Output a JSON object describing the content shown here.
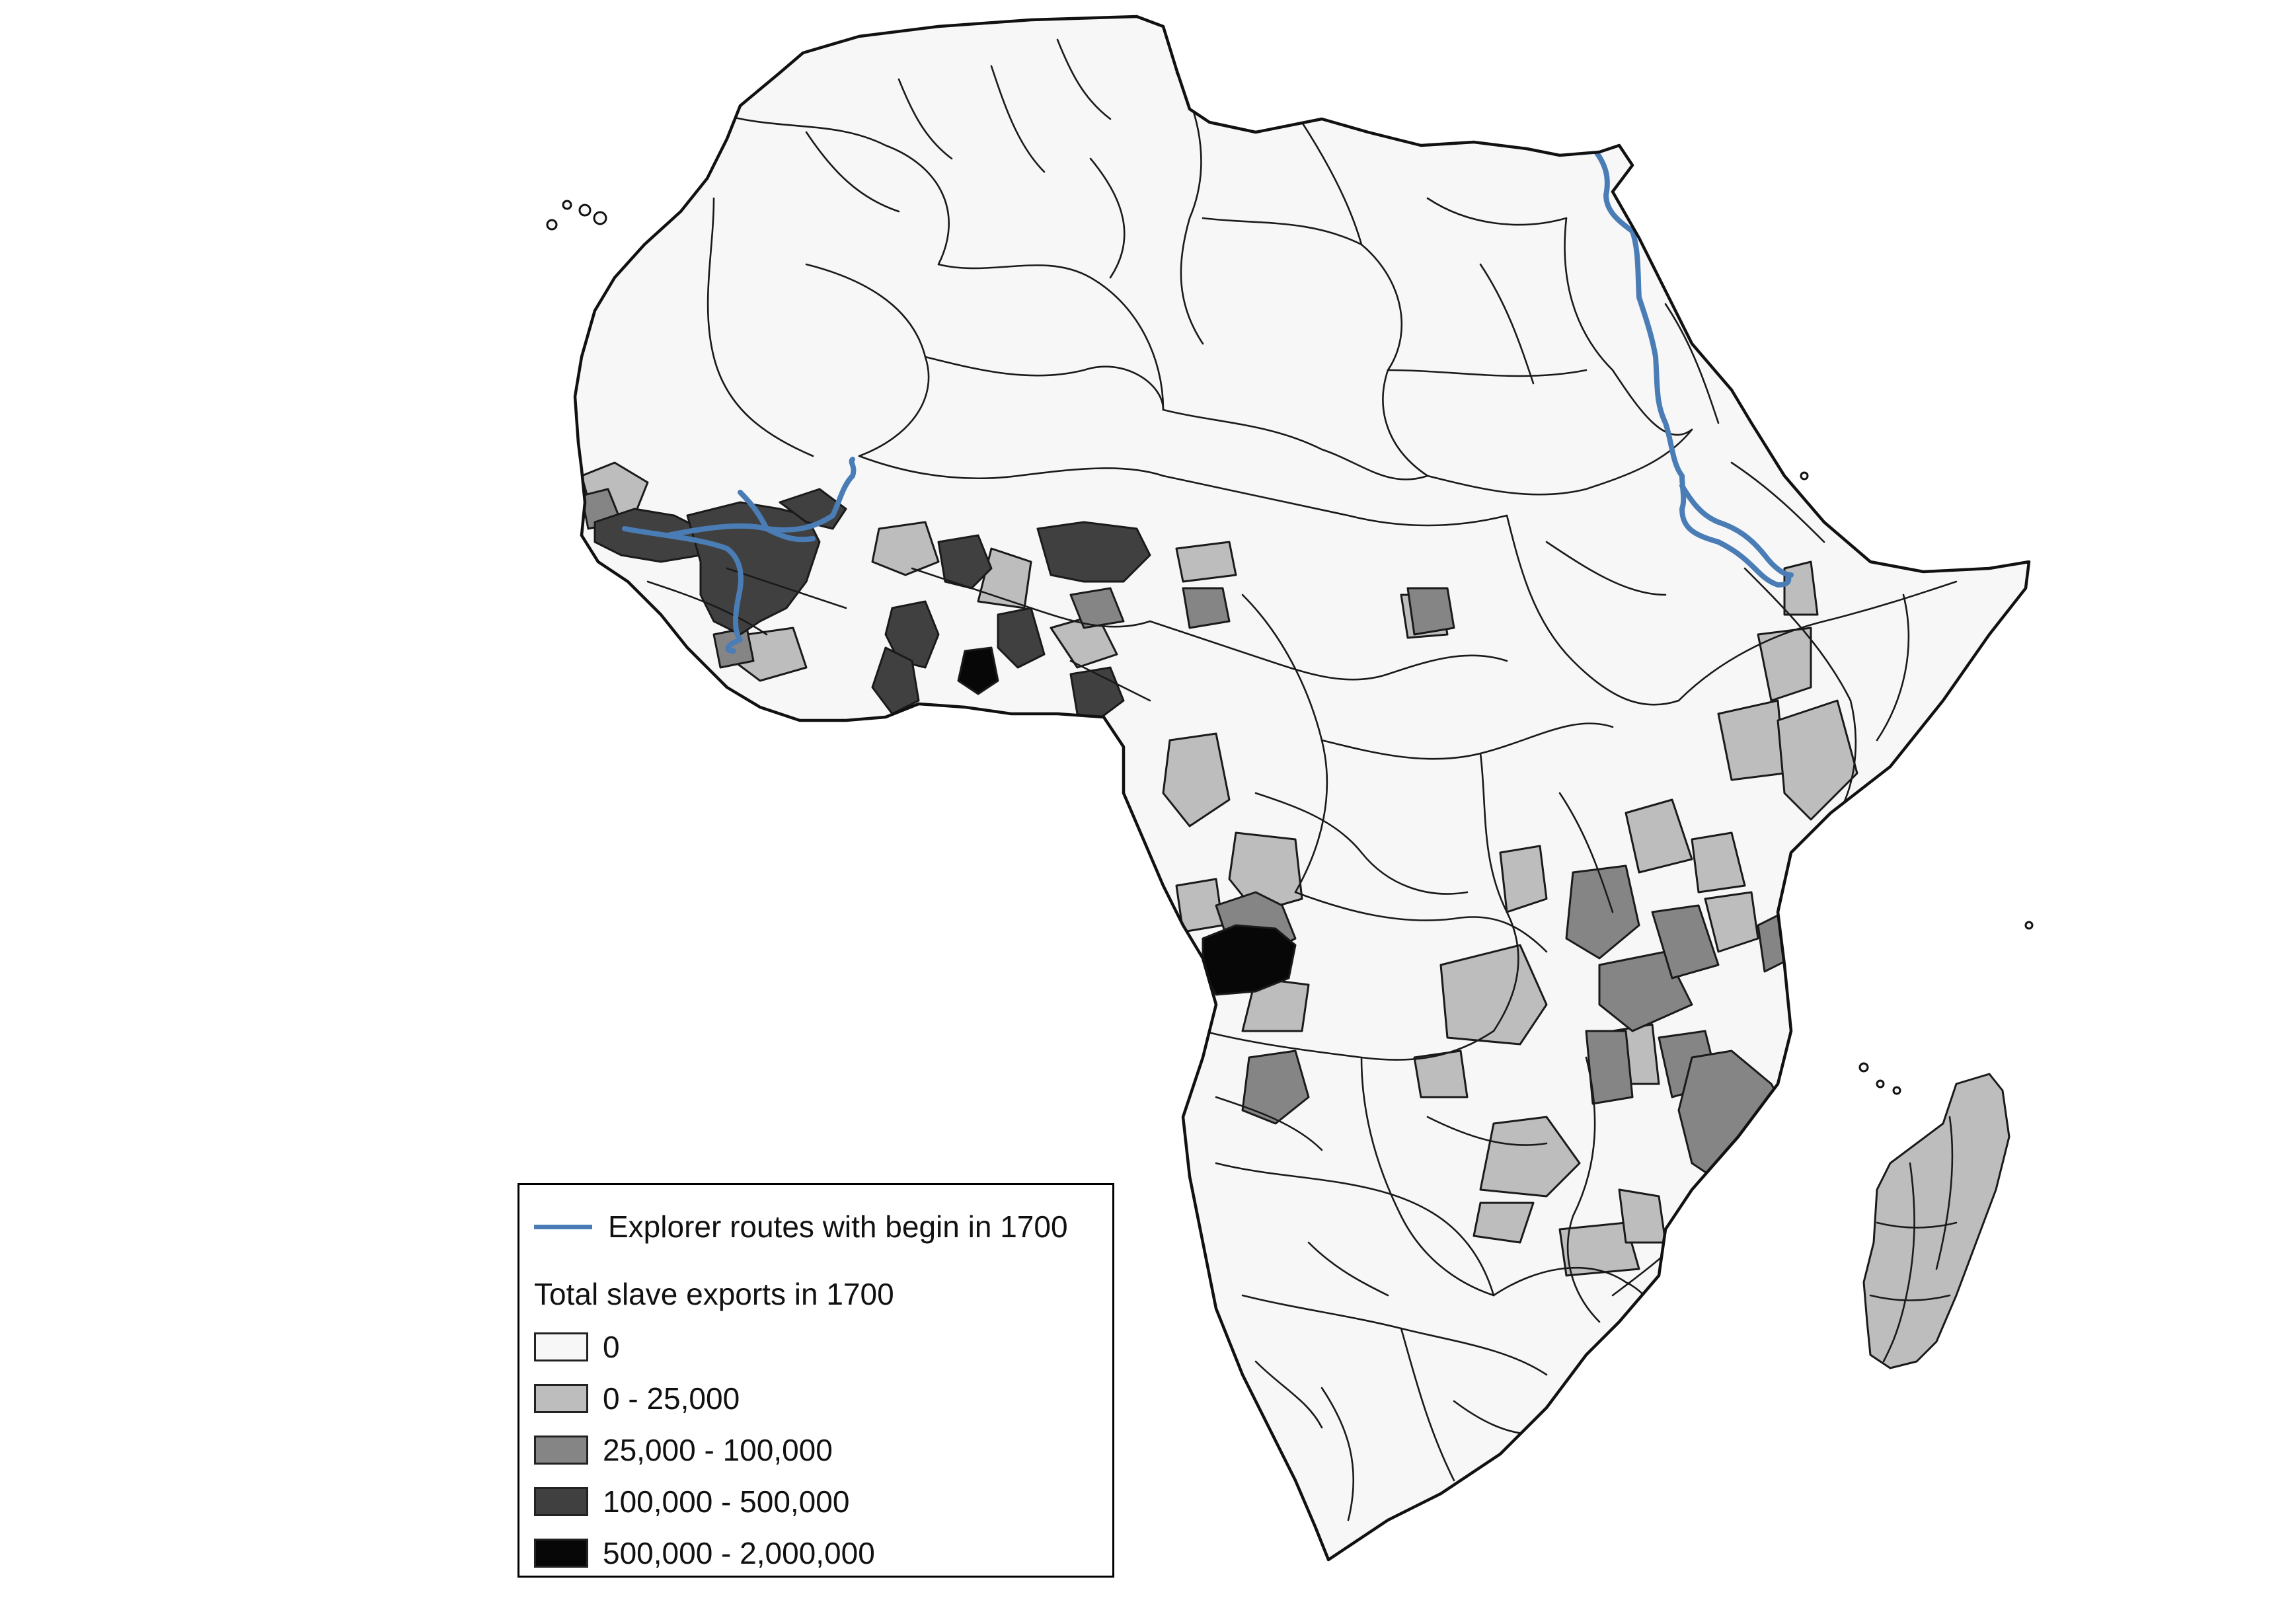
{
  "map": {
    "colors": {
      "cat0": "#f7f7f7",
      "cat1": "#bdbdbd",
      "cat2": "#858585",
      "cat3": "#404040",
      "cat4": "#070707",
      "route": "#4a7db5"
    }
  },
  "legend": {
    "route_label": "Explorer routes with begin in 1700",
    "title": "Total slave exports in 1700",
    "categories": [
      {
        "label": "0",
        "color": "#f7f7f7"
      },
      {
        "label": "0 - 25,000",
        "color": "#bdbdbd"
      },
      {
        "label": "25,000 - 100,000",
        "color": "#858585"
      },
      {
        "label": "100,000 - 500,000",
        "color": "#404040"
      },
      {
        "label": "500,000 - 2,000,000",
        "color": "#070707"
      }
    ]
  }
}
